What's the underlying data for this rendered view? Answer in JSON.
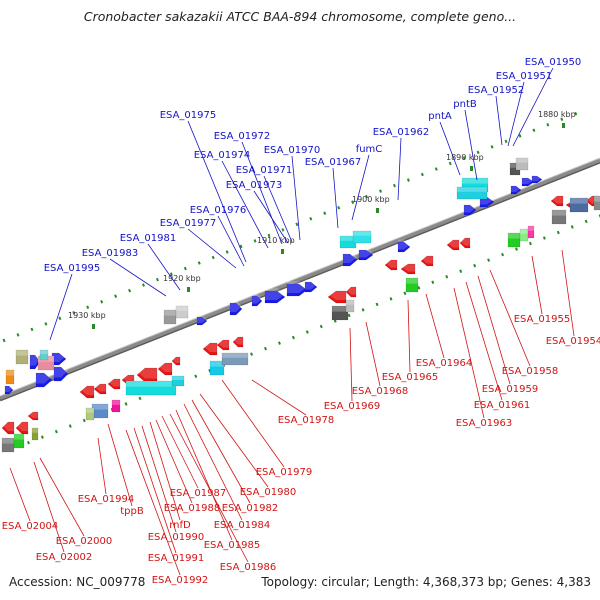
{
  "title": "Cronobacter sakazakii ATCC BAA-894 chromosome, complete geno...",
  "footer": {
    "accession": "Accession: NC_009778",
    "topology": "Topology: circular; Length: 4,368,373 bp; Genes: 4,383"
  },
  "colors": {
    "forward_label": "#1414c8",
    "reverse_label": "#d21414",
    "forward_gene": "#1a1ae6",
    "reverse_gene": "#e61414",
    "backbone": "#8a8a8a",
    "ticks": "#2a8a2a"
  },
  "scale_ticks": [
    "1880 kbp",
    "1890 kbp",
    "1900 kbp",
    "1910 kbp",
    "1920 kbp",
    "1930 kbp"
  ],
  "forward_genes": [
    "ESA_01950",
    "ESA_01951",
    "ESA_01952",
    "pntB",
    "pntA",
    "ESA_01962",
    "fumC",
    "ESA_01967",
    "ESA_01970",
    "ESA_01971",
    "ESA_01972",
    "ESA_01973",
    "ESA_01974",
    "ESA_01975",
    "ESA_01976",
    "ESA_01977",
    "ESA_01981",
    "ESA_01983",
    "ESA_01995"
  ],
  "reverse_genes": [
    "ESA_01954",
    "ESA_01955",
    "ESA_01958",
    "ESA_01959",
    "ESA_01961",
    "ESA_01963",
    "ESA_01964",
    "ESA_01965",
    "ESA_01968",
    "ESA_01969",
    "ESA_01978",
    "ESA_01979",
    "ESA_01980",
    "ESA_01982",
    "ESA_01984",
    "ESA_01985",
    "ESA_01986",
    "ESA_01987",
    "ESA_01988",
    "rnfD",
    "ESA_01990",
    "ESA_01991",
    "ESA_01992",
    "tppB",
    "ESA_01994",
    "ESA_02000",
    "ESA_02002",
    "ESA_02004"
  ]
}
